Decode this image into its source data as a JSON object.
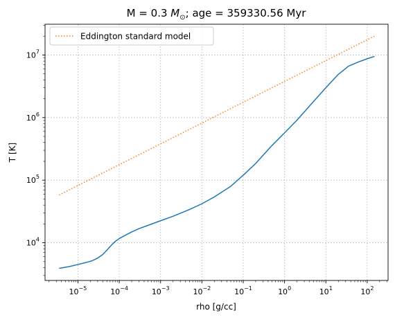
{
  "chart_data": {
    "type": "line",
    "title": {
      "main": "M = 0.3 ",
      "sym": "M",
      "sub": "⊙",
      "rest": "; age = 359330.56 Myr"
    },
    "xlabel": "rho [g/cc]",
    "ylabel": "T [K]",
    "xscale": "log",
    "yscale": "log",
    "xlim": [
      1.6e-06,
      320
    ],
    "ylim": [
      2500,
      31000000
    ],
    "xticks": [
      {
        "value": 1e-05,
        "base": "10",
        "exp": "−5"
      },
      {
        "value": 0.0001,
        "base": "10",
        "exp": "−4"
      },
      {
        "value": 0.001,
        "base": "10",
        "exp": "−3"
      },
      {
        "value": 0.01,
        "base": "10",
        "exp": "−2"
      },
      {
        "value": 0.1,
        "base": "10",
        "exp": "−1"
      },
      {
        "value": 1,
        "base": "10",
        "exp": "0"
      },
      {
        "value": 10,
        "base": "10",
        "exp": "1"
      },
      {
        "value": 100,
        "base": "10",
        "exp": "2"
      }
    ],
    "yticks": [
      {
        "value": 10000.0,
        "base": "10",
        "exp": "4"
      },
      {
        "value": 100000.0,
        "base": "10",
        "exp": "5"
      },
      {
        "value": 1000000.0,
        "base": "10",
        "exp": "6"
      },
      {
        "value": 10000000.0,
        "base": "10",
        "exp": "7"
      }
    ],
    "grid": true,
    "legend_position": "upper-left",
    "series": [
      {
        "name": "",
        "color": "#1f77b4",
        "style": "solid",
        "x": [
          3.5e-06,
          6e-06,
          1e-05,
          1.5e-05,
          2.2e-05,
          3e-05,
          4e-05,
          5e-05,
          6.5e-05,
          8e-05,
          0.0001,
          0.00015,
          0.0002,
          0.0003,
          0.0005,
          0.001,
          0.002,
          0.005,
          0.01,
          0.02,
          0.05,
          0.1,
          0.2,
          0.5,
          1,
          2,
          5,
          10,
          20,
          35,
          60,
          100,
          150
        ],
        "y": [
          3900,
          4150,
          4500,
          4800,
          5150,
          5700,
          6500,
          7600,
          9200,
          10500,
          11700,
          13500,
          14900,
          16800,
          19000,
          22500,
          26500,
          34000,
          42000,
          54000,
          80000,
          120000,
          185000,
          360000,
          570000,
          910000,
          1800000,
          3000000,
          4900000,
          6600000,
          7700000,
          8700000,
          9500000
        ]
      },
      {
        "name": "Eddington standard model",
        "color": "#ff7f0e",
        "style": "dotted",
        "x": [
          3.5e-06,
          150
        ],
        "y": [
          58000,
          20000000
        ]
      }
    ]
  }
}
